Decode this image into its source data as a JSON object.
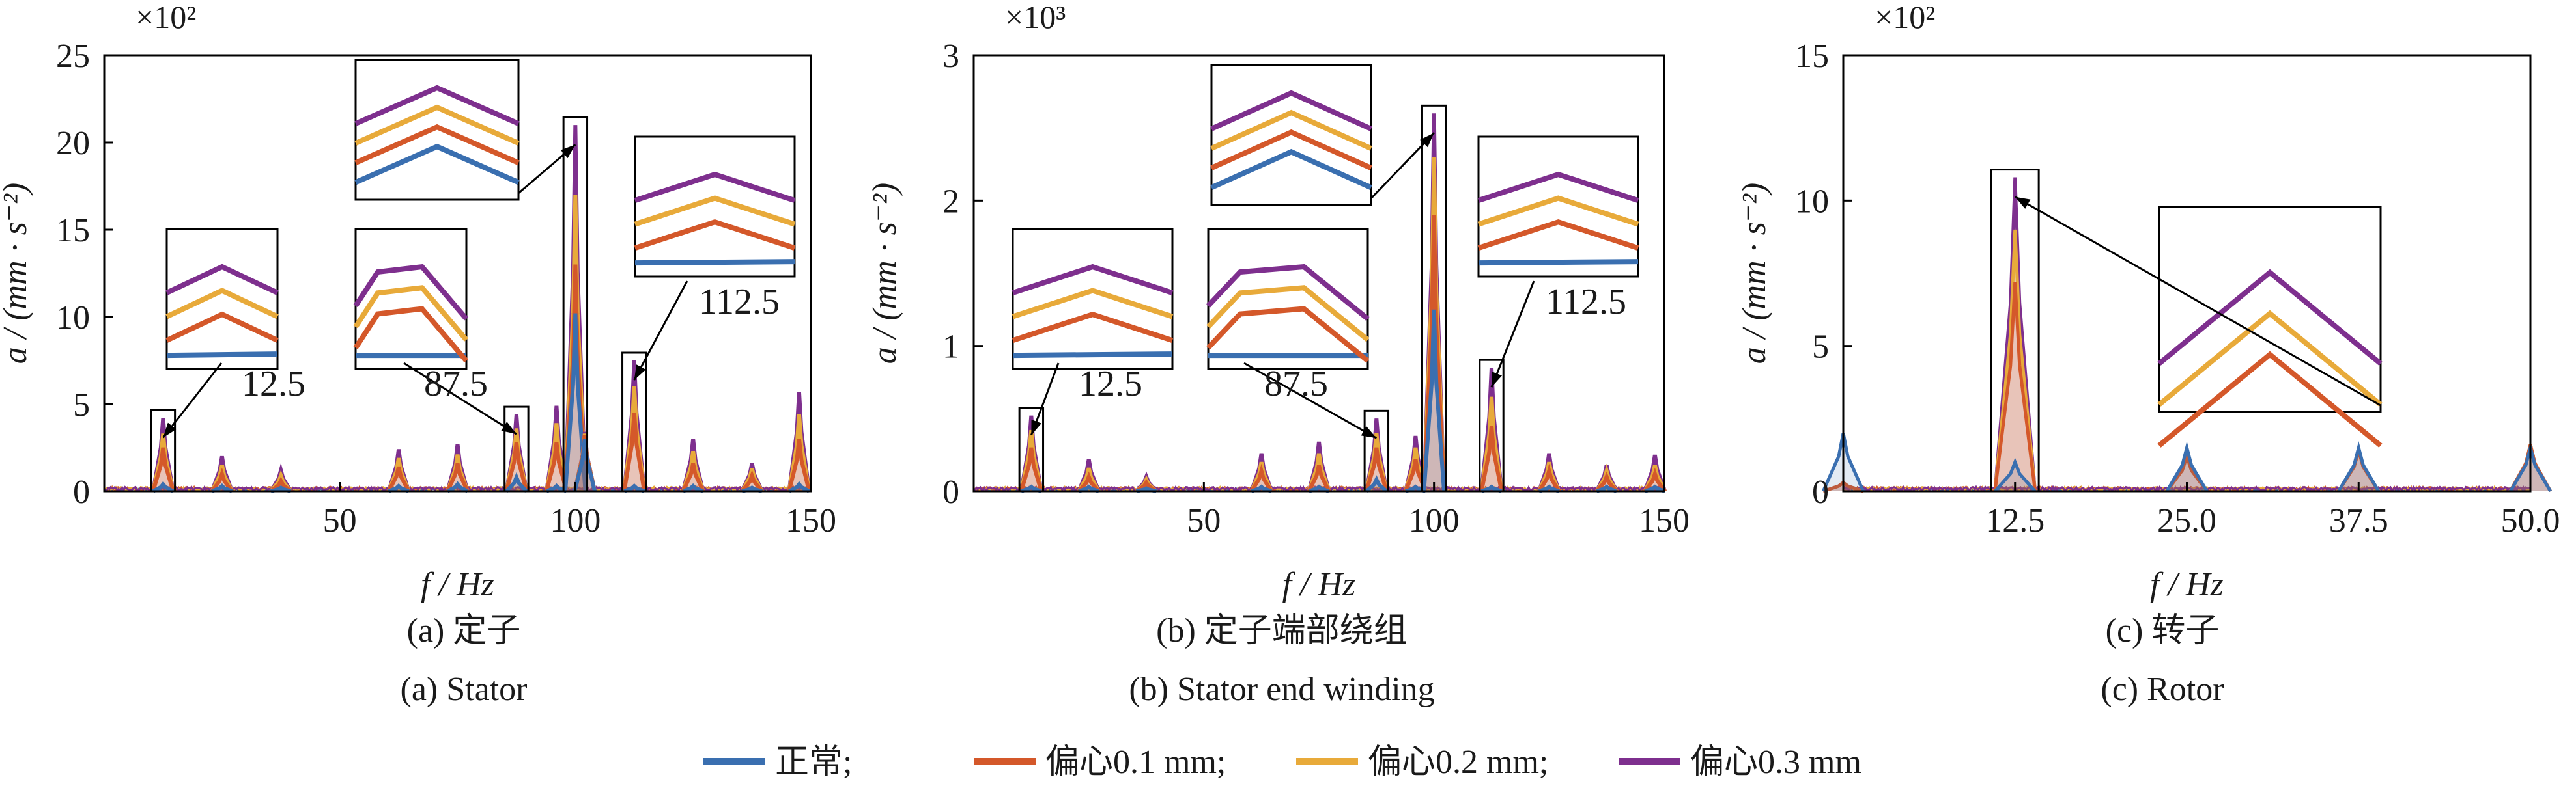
{
  "colors": {
    "normal": "#3a6fb0",
    "ecc_0_1": "#d4582a",
    "ecc_0_2": "#e8aa3a",
    "ecc_0_3": "#7e2f8e"
  },
  "legend": [
    {
      "label": "正常;",
      "color": "#3a6fb0"
    },
    {
      "label": "偏心0.1 mm;",
      "color": "#d4582a"
    },
    {
      "label": "偏心0.2 mm;",
      "color": "#e8aa3a"
    },
    {
      "label": "偏心0.3 mm",
      "color": "#7e2f8e"
    }
  ],
  "captions": [
    {
      "cn": "(a)  定子",
      "en": "(a)  Stator"
    },
    {
      "cn": "(b)  定子端部绕组",
      "en": "(b)  Stator end winding"
    },
    {
      "cn": "(c)  转子",
      "en": "(c)  Rotor"
    }
  ],
  "chart_data": [
    {
      "type": "line",
      "xlabel": "f / Hz",
      "ylabel": "a / (mm · s⁻²)",
      "multiplier": "×10²",
      "xlim": [
        0,
        150
      ],
      "ylim": [
        0,
        25
      ],
      "xticks": [
        50,
        100,
        150
      ],
      "yticks": [
        0,
        5,
        10,
        15,
        20,
        25
      ],
      "series_names": [
        "正常",
        "偏心0.1 mm",
        "偏心0.2 mm",
        "偏心0.3 mm"
      ],
      "peaks": [
        {
          "x": 12.5,
          "values": [
            0.4,
            2.5,
            3.3,
            4.2
          ]
        },
        {
          "x": 25.0,
          "values": [
            0.3,
            1.0,
            1.5,
            2.0
          ]
        },
        {
          "x": 37.5,
          "values": [
            0.2,
            0.6,
            0.9,
            1.2
          ]
        },
        {
          "x": 62.5,
          "values": [
            0.3,
            1.4,
            1.9,
            2.4
          ]
        },
        {
          "x": 75.0,
          "values": [
            0.4,
            1.6,
            2.1,
            2.7
          ]
        },
        {
          "x": 87.5,
          "values": [
            0.8,
            2.8,
            3.6,
            4.4
          ]
        },
        {
          "x": 96.0,
          "values": [
            0.3,
            2.8,
            3.9,
            4.9
          ]
        },
        {
          "x": 100.0,
          "values": [
            10.2,
            13.0,
            17.0,
            21.0
          ]
        },
        {
          "x": 102.0,
          "values": [
            3.0,
            3.2,
            3.3,
            3.4
          ]
        },
        {
          "x": 112.5,
          "values": [
            0.3,
            4.5,
            6.0,
            7.5
          ]
        },
        {
          "x": 125.0,
          "values": [
            0.3,
            1.6,
            2.3,
            3.0
          ]
        },
        {
          "x": 137.5,
          "values": [
            0.2,
            0.9,
            1.3,
            1.6
          ]
        },
        {
          "x": 147.5,
          "values": [
            0.4,
            3.0,
            4.4,
            5.7
          ]
        }
      ],
      "annotations": [
        {
          "text": "12.5",
          "x": 12.5
        },
        {
          "text": "87.5",
          "x": 87.5
        },
        {
          "text": "112.5",
          "x": 112.5
        }
      ]
    },
    {
      "type": "line",
      "xlabel": "f / Hz",
      "ylabel": "a / (mm · s⁻²)",
      "multiplier": "×10³",
      "xlim": [
        0,
        150
      ],
      "ylim": [
        0,
        3
      ],
      "xticks": [
        50,
        100,
        150
      ],
      "yticks": [
        0,
        1,
        2,
        3
      ],
      "series_names": [
        "正常",
        "偏心0.1 mm",
        "偏心0.2 mm",
        "偏心0.3 mm"
      ],
      "peaks": [
        {
          "x": 12.5,
          "values": [
            0.03,
            0.3,
            0.42,
            0.52
          ]
        },
        {
          "x": 25.0,
          "values": [
            0.03,
            0.1,
            0.16,
            0.22
          ]
        },
        {
          "x": 37.5,
          "values": [
            0.02,
            0.06,
            0.08,
            0.1
          ]
        },
        {
          "x": 62.5,
          "values": [
            0.03,
            0.14,
            0.2,
            0.26
          ]
        },
        {
          "x": 75.0,
          "values": [
            0.03,
            0.18,
            0.26,
            0.34
          ]
        },
        {
          "x": 87.5,
          "values": [
            0.08,
            0.3,
            0.4,
            0.5
          ]
        },
        {
          "x": 96.0,
          "values": [
            0.03,
            0.22,
            0.3,
            0.38
          ]
        },
        {
          "x": 100.0,
          "values": [
            1.25,
            1.9,
            2.3,
            2.6
          ]
        },
        {
          "x": 112.5,
          "values": [
            0.03,
            0.45,
            0.65,
            0.85
          ]
        },
        {
          "x": 125.0,
          "values": [
            0.03,
            0.14,
            0.2,
            0.26
          ]
        },
        {
          "x": 137.5,
          "values": [
            0.03,
            0.1,
            0.14,
            0.18
          ]
        },
        {
          "x": 148.0,
          "values": [
            0.03,
            0.12,
            0.18,
            0.25
          ]
        }
      ],
      "annotations": [
        {
          "text": "12.5",
          "x": 12.5
        },
        {
          "text": "87.5",
          "x": 87.5
        },
        {
          "text": "112.5",
          "x": 112.5
        }
      ]
    },
    {
      "type": "line",
      "xlabel": "f / Hz",
      "ylabel": "a / (mm · s⁻²)",
      "multiplier": "×10²",
      "xlim": [
        0,
        50
      ],
      "ylim": [
        0,
        15
      ],
      "xticks": [
        12.5,
        25.0,
        37.5,
        50.0
      ],
      "xticklabels": [
        "12.5",
        "25.0",
        "37.5",
        "50.0"
      ],
      "yticks": [
        0,
        5,
        10,
        15
      ],
      "series_names": [
        "正常",
        "偏心0.1 mm",
        "偏心0.2 mm",
        "偏心0.3 mm"
      ],
      "peaks": [
        {
          "x": 0.0,
          "values": [
            2.0,
            0.3,
            0.3,
            0.3
          ]
        },
        {
          "x": 12.5,
          "values": [
            1.0,
            7.2,
            9.0,
            10.8
          ]
        },
        {
          "x": 25.0,
          "values": [
            1.5,
            1.2,
            1.2,
            1.2
          ]
        },
        {
          "x": 37.5,
          "values": [
            1.5,
            1.4,
            1.4,
            1.4
          ]
        },
        {
          "x": 50.0,
          "values": [
            1.5,
            1.6,
            1.6,
            1.6
          ]
        }
      ],
      "annotations": []
    }
  ]
}
